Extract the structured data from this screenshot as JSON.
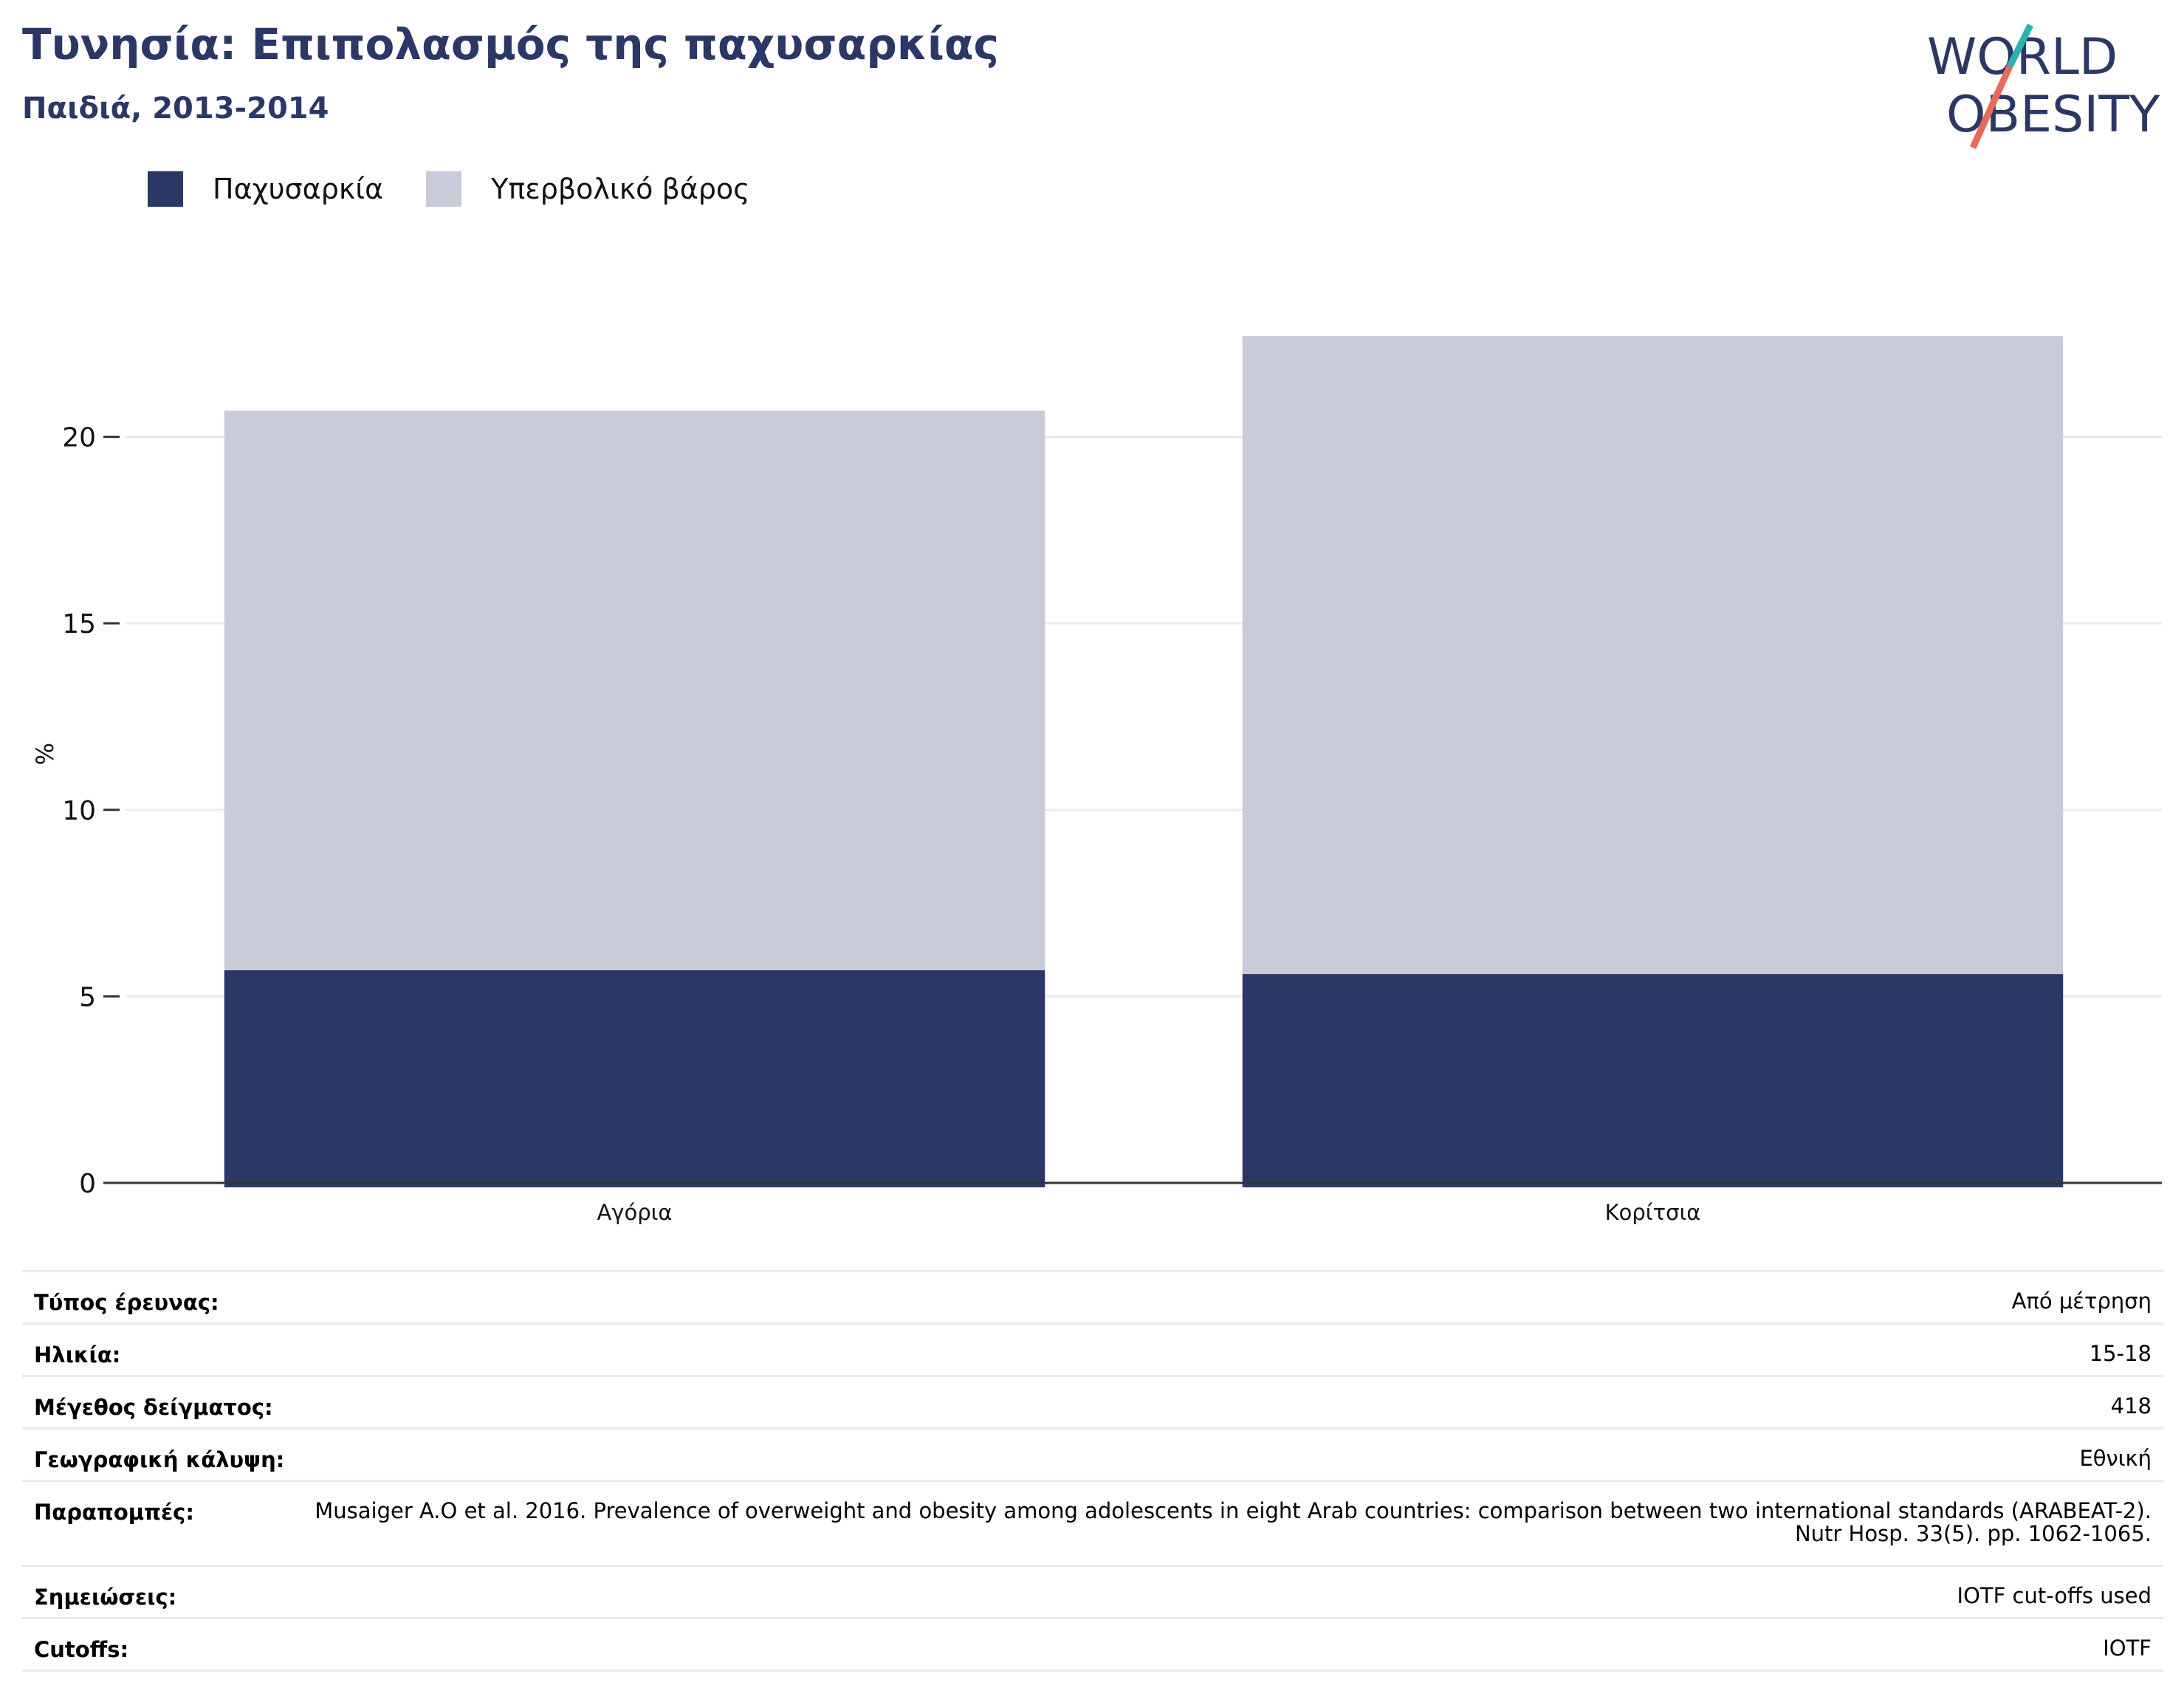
{
  "header": {
    "title": "Τυνησία: Επιπολασμός της παχυσαρκίας",
    "subtitle": "Παιδιά, 2013-2014"
  },
  "logo": {
    "line1": "WORLD",
    "line2": "OBESITY",
    "colors": {
      "text": "#2b3766",
      "slash_teal": "#2bb3b1",
      "slash_coral": "#e86a58"
    }
  },
  "legend": [
    {
      "label": "Παχυσαρκία",
      "color": "#2b3766"
    },
    {
      "label": "Υπερβολικό βάρος",
      "color": "#c9ccd8"
    }
  ],
  "chart_data": {
    "type": "bar",
    "stacked": true,
    "categories": [
      "Αγόρια",
      "Κορίτσια"
    ],
    "series": [
      {
        "name": "Παχυσαρκία",
        "values": [
          5.7,
          5.6
        ],
        "color": "#2b3766"
      },
      {
        "name": "Υπερβολικό βάρος",
        "values": [
          15.0,
          17.1
        ],
        "color": "#c9ccd8"
      }
    ],
    "ylabel": "%",
    "ylim": [
      0,
      23
    ],
    "yticks": [
      0,
      5,
      10,
      15,
      20
    ],
    "grid": true,
    "legend_position": "top-left"
  },
  "meta": [
    {
      "key": "Τύπος έρευνας:",
      "value": "Από μέτρηση"
    },
    {
      "key": "Ηλικία:",
      "value": "15-18"
    },
    {
      "key": "Μέγεθος δείγματος:",
      "value": "418"
    },
    {
      "key": "Γεωγραφική κάλυψη:",
      "value": "Εθνική"
    },
    {
      "key": "Παραπομπές:",
      "value": "Musaiger A.O et al. 2016. Prevalence of overweight and obesity among adolescents in eight Arab countries: comparison between two international standards (ARABEAT-2). Nutr Hosp. 33(5). pp. 1062-1065."
    },
    {
      "key": "Σημειώσεις:",
      "value": "IOTF cut-offs used"
    },
    {
      "key": "Cutoffs:",
      "value": "IOTF"
    }
  ]
}
